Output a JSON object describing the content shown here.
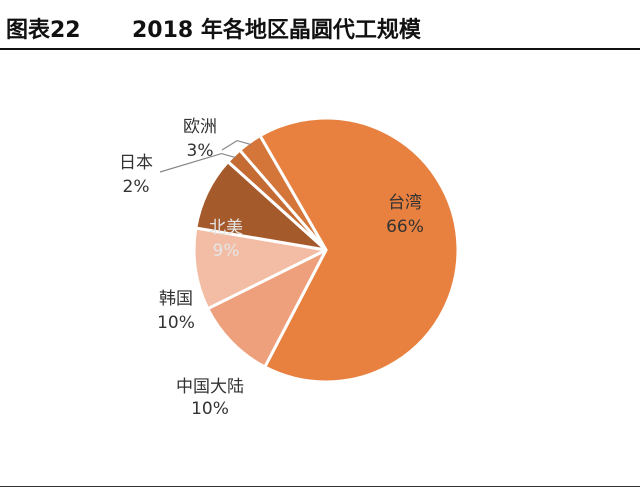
{
  "header": {
    "figure_label": "图表22",
    "title": "2018 年各地区晶圆代工规模"
  },
  "chart_data": {
    "type": "pie",
    "title": "2018 年各地区晶圆代工规模",
    "slices": [
      {
        "name": "台湾",
        "value": 66,
        "label": "66%",
        "color": "#E8803F"
      },
      {
        "name": "中国大陆",
        "value": 10,
        "label": "10%",
        "color": "#EEA07C"
      },
      {
        "name": "韩国",
        "value": 10,
        "label": "10%",
        "color": "#F3BCA4"
      },
      {
        "name": "北美",
        "value": 9,
        "label": "9%",
        "color": "#A55A2C"
      },
      {
        "name": "日本",
        "value": 2,
        "label": "2%",
        "color": "#C46B34"
      },
      {
        "name": "欧洲",
        "value": 3,
        "label": "3%",
        "color": "#D4763A"
      }
    ]
  }
}
